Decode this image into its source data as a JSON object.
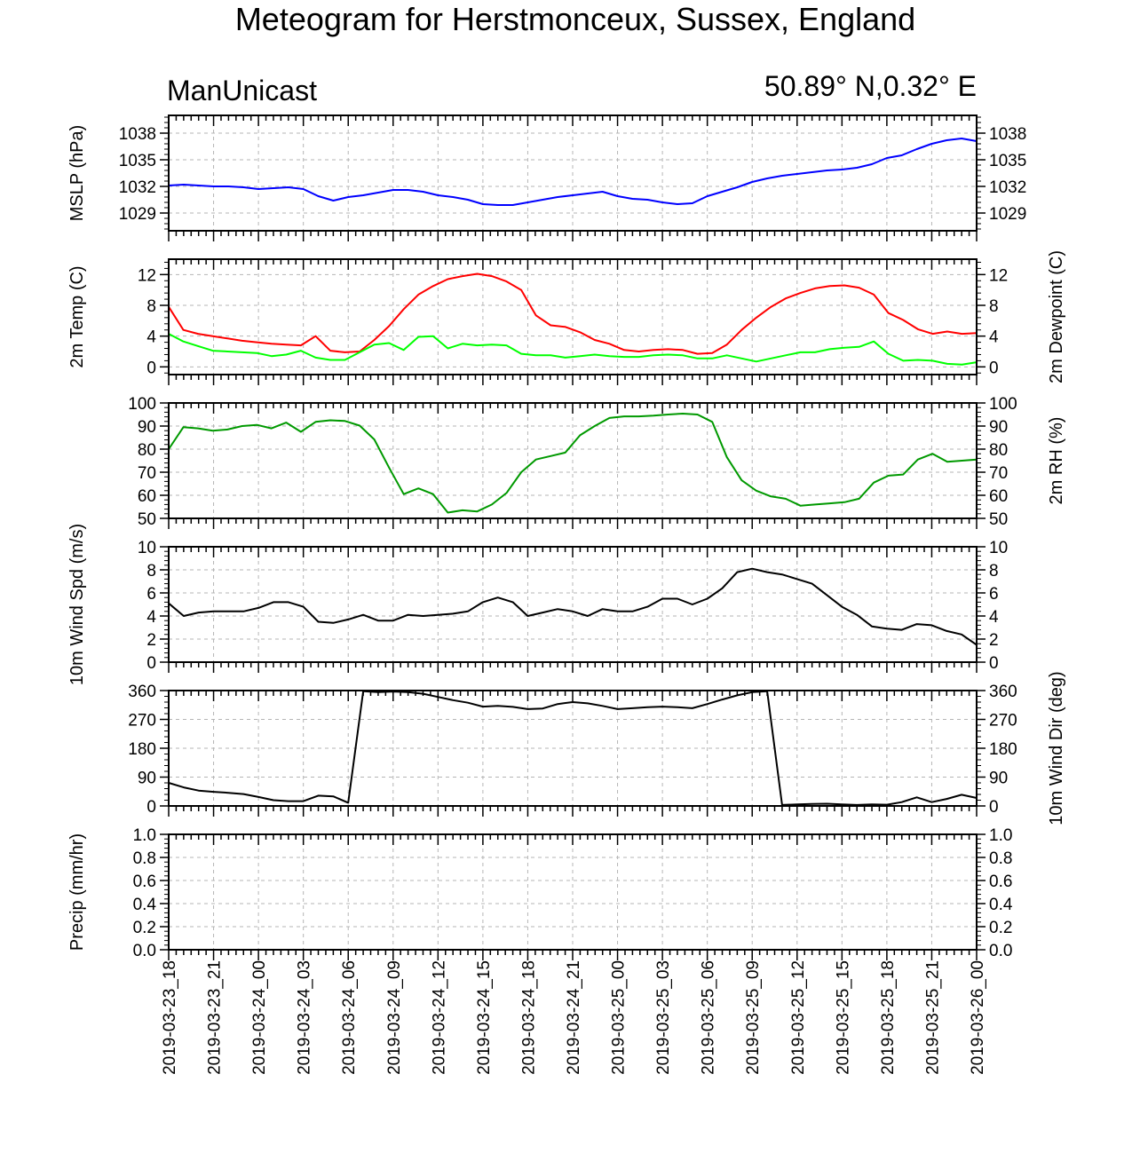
{
  "title": "Meteogram for Herstmonceux, Sussex, England",
  "model": "ManUnicast",
  "location_coords": "50.89° N,0.32° E",
  "time_labels": [
    "2019-03-23_18",
    "2019-03-23_21",
    "2019-03-24_00",
    "2019-03-24_03",
    "2019-03-24_06",
    "2019-03-24_09",
    "2019-03-24_12",
    "2019-03-24_15",
    "2019-03-24_18",
    "2019-03-24_21",
    "2019-03-25_00",
    "2019-03-25_03",
    "2019-03-25_06",
    "2019-03-25_09",
    "2019-03-25_12",
    "2019-03-25_15",
    "2019-03-25_18",
    "2019-03-25_21",
    "2019-03-26_00"
  ],
  "chart_data": [
    {
      "type": "line",
      "ylabel": "MSLP (hPa)",
      "ylim": [
        1027,
        1040
      ],
      "yticks": [
        1029,
        1032,
        1035,
        1038
      ],
      "tick_labels_right": true,
      "grid": true,
      "series": [
        {
          "color": "#0000ff",
          "values": [
            1032.1,
            1032.2,
            1032.1,
            1032.0,
            1032.0,
            1031.9,
            1031.7,
            1031.8,
            1031.9,
            1031.7,
            1030.9,
            1030.4,
            1030.8,
            1031.0,
            1031.3,
            1031.6,
            1031.6,
            1031.4,
            1031.0,
            1030.8,
            1030.5,
            1030.0,
            1029.9,
            1029.9,
            1030.2,
            1030.5,
            1030.8,
            1031.0,
            1031.2,
            1031.4,
            1030.9,
            1030.6,
            1030.5,
            1030.2,
            1030.0,
            1030.1,
            1030.9,
            1031.4,
            1031.9,
            1032.5,
            1032.9,
            1033.2,
            1033.4,
            1033.6,
            1033.8,
            1033.9,
            1034.1,
            1034.5,
            1035.2,
            1035.5,
            1036.2,
            1036.8,
            1037.2,
            1037.4,
            1037.1
          ]
        }
      ]
    },
    {
      "type": "line",
      "ylabel": "2m Temp (C)",
      "ylabel_right": "2m Dewpoint (C)",
      "ylim": [
        -1,
        14
      ],
      "yticks": [
        0,
        4,
        8,
        12
      ],
      "tick_labels_right": true,
      "grid": true,
      "series": [
        {
          "color": "#ff0000",
          "values": [
            7.8,
            4.8,
            4.3,
            4.0,
            3.7,
            3.4,
            3.2,
            3.0,
            2.9,
            2.8,
            4.0,
            2.1,
            1.9,
            2.0,
            3.5,
            5.3,
            7.5,
            9.4,
            10.5,
            11.4,
            11.8,
            12.1,
            11.8,
            11.1,
            10.0,
            6.7,
            5.4,
            5.2,
            4.5,
            3.5,
            3.0,
            2.2,
            2.0,
            2.2,
            2.3,
            2.2,
            1.7,
            1.8,
            2.9,
            4.8,
            6.4,
            7.8,
            8.9,
            9.6,
            10.2,
            10.5,
            10.6,
            10.3,
            9.4,
            7.0,
            6.1,
            4.9,
            4.3,
            4.6,
            4.3,
            4.4
          ]
        },
        {
          "color": "#00ff00",
          "values": [
            4.3,
            3.3,
            2.7,
            2.1,
            2.0,
            1.9,
            1.8,
            1.4,
            1.6,
            2.1,
            1.2,
            0.9,
            0.9,
            1.9,
            2.9,
            3.1,
            2.2,
            3.9,
            4.0,
            2.4,
            3.0,
            2.8,
            2.9,
            2.8,
            1.7,
            1.5,
            1.5,
            1.2,
            1.4,
            1.6,
            1.4,
            1.3,
            1.3,
            1.5,
            1.6,
            1.5,
            1.1,
            1.1,
            1.5,
            1.1,
            0.7,
            1.1,
            1.5,
            1.9,
            1.9,
            2.3,
            2.5,
            2.6,
            3.3,
            1.7,
            0.8,
            0.9,
            0.8,
            0.4,
            0.3,
            0.6
          ]
        }
      ]
    },
    {
      "type": "line",
      "ylabel_right": "2m RH (%)",
      "ylim": [
        50,
        100
      ],
      "yticks": [
        50,
        60,
        70,
        80,
        90,
        100
      ],
      "tick_labels_left": true,
      "grid": true,
      "series": [
        {
          "color": "#009900",
          "values": [
            80,
            89.5,
            89,
            88,
            88.5,
            90,
            90.5,
            89,
            91.5,
            87.5,
            91.8,
            92.5,
            92.2,
            90.2,
            84.2,
            72,
            60.5,
            63,
            60.5,
            52.5,
            53.5,
            53,
            56,
            61,
            70,
            75.5,
            77,
            78.5,
            86,
            90,
            93.5,
            94.2,
            94.2,
            94.5,
            95,
            95.4,
            95,
            91.8,
            76.5,
            66.5,
            62,
            59.5,
            58.5,
            55.5,
            56,
            56.5,
            57,
            58.5,
            65.5,
            68.5,
            69,
            75.5,
            78,
            74.5,
            75,
            75.5
          ]
        }
      ]
    },
    {
      "type": "line",
      "ylabel": "10m Wind Spd (m/s)",
      "ylim": [
        0,
        10
      ],
      "yticks": [
        0,
        2,
        4,
        6,
        8,
        10
      ],
      "tick_labels_right": true,
      "grid": true,
      "series": [
        {
          "color": "#000000",
          "values": [
            5.1,
            4.0,
            4.3,
            4.4,
            4.4,
            4.4,
            4.7,
            5.2,
            5.2,
            4.8,
            3.5,
            3.4,
            3.7,
            4.1,
            3.6,
            3.6,
            4.1,
            4.0,
            4.1,
            4.2,
            4.4,
            5.2,
            5.6,
            5.2,
            4.0,
            4.3,
            4.6,
            4.4,
            4.0,
            4.6,
            4.4,
            4.4,
            4.8,
            5.5,
            5.5,
            5.0,
            5.5,
            6.4,
            7.8,
            8.1,
            7.8,
            7.6,
            7.2,
            6.8,
            5.8,
            4.8,
            4.1,
            3.1,
            2.9,
            2.8,
            3.3,
            3.2,
            2.7,
            2.4,
            1.5
          ]
        }
      ]
    },
    {
      "type": "line",
      "ylabel_right": "10m Wind Dir (deg)",
      "ylim": [
        0,
        360
      ],
      "yticks": [
        0,
        90,
        180,
        270,
        360
      ],
      "tick_labels_left": true,
      "grid": true,
      "series": [
        {
          "color": "#000000",
          "values": [
            72,
            58,
            48,
            44,
            41,
            37,
            28,
            18,
            15,
            15,
            32,
            30,
            10,
            358,
            355,
            357,
            355,
            350,
            340,
            330,
            322,
            310,
            312,
            309,
            302,
            304,
            318,
            324,
            320,
            312,
            302,
            305,
            308,
            310,
            308,
            305,
            318,
            332,
            345,
            355,
            358,
            3,
            5,
            6,
            7,
            5,
            3,
            5,
            4,
            12,
            27,
            12,
            22,
            35,
            25
          ]
        }
      ]
    },
    {
      "type": "line",
      "ylabel": "Precip (mm/hr)",
      "ylim": [
        0,
        1
      ],
      "yticks": [
        0.0,
        0.2,
        0.4,
        0.6,
        0.8,
        1.0
      ],
      "tick_labels_right": true,
      "grid": true,
      "series": []
    }
  ]
}
